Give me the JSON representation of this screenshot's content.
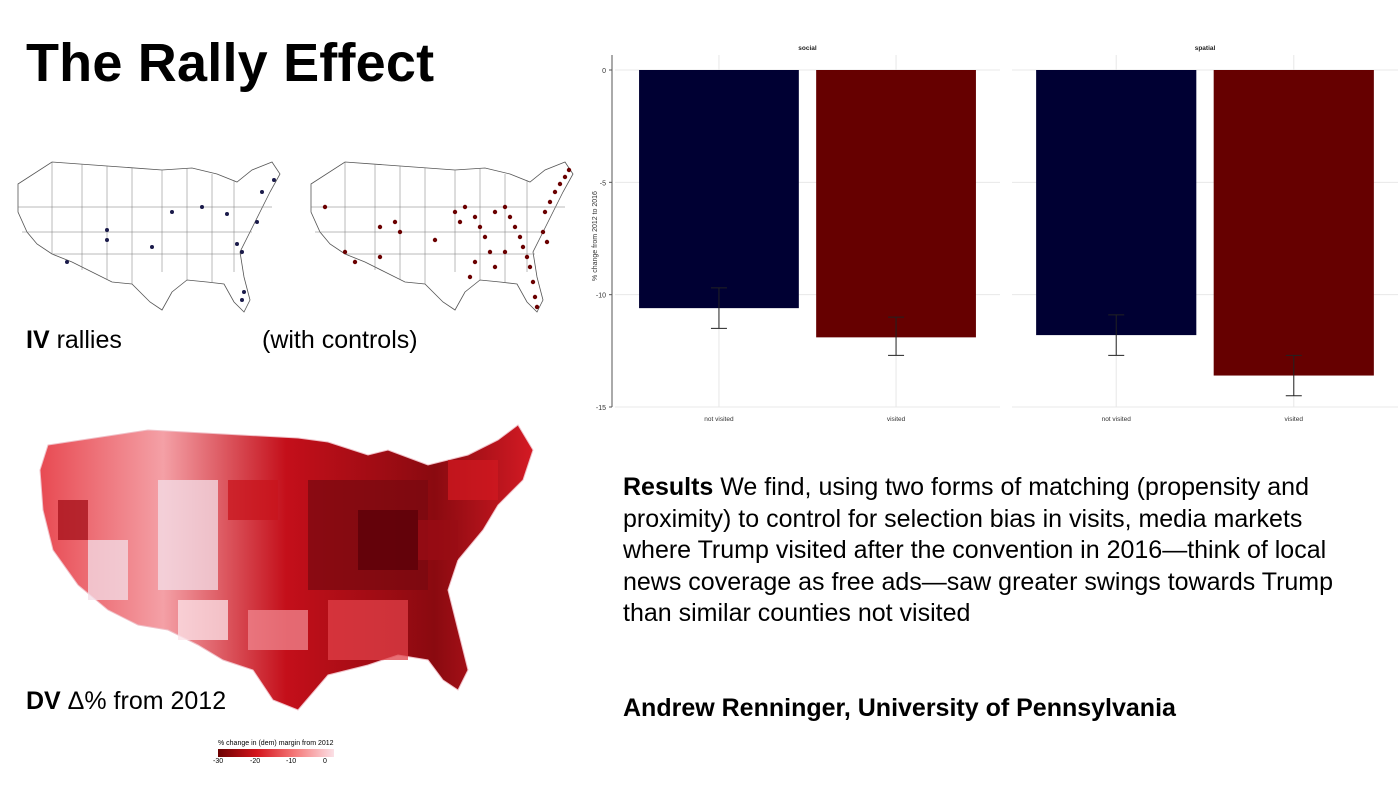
{
  "slide": {
    "title": "The Rally Effect"
  },
  "captions": {
    "iv_bold": "IV",
    "iv_rest": " rallies",
    "controls": "(with controls)",
    "dv_bold": "DV",
    "dv_rest": " Δ% from 2012"
  },
  "legend": {
    "title": "% change in (dem) margin from 2012",
    "ticks": [
      "-30",
      "-20",
      "-10",
      "0"
    ]
  },
  "results": {
    "label": "Results",
    "text": " We find, using two forms of matching (propensity and proximity) to control for selection bias in visits, media markets where Trump visited after the convention in 2016—think of local news coverage as free ads—saw greater swings towards Trump than similar counties not visited"
  },
  "author": "Andrew Renninger, University of Pennsylvania",
  "colors": {
    "not_visited": "#000033",
    "visited": "#660000",
    "map_line": "#555555",
    "rally_dot_iv": "#1a1a4a",
    "rally_dot_controls": "#6b0000"
  },
  "chart_data": {
    "type": "bar",
    "ylabel": "% change from 2012 to 2016",
    "ylim": [
      -15,
      0
    ],
    "yticks": [
      "0",
      "-5",
      "-10",
      "-15"
    ],
    "panels": [
      {
        "name": "social",
        "categories": [
          "not visited",
          "visited"
        ],
        "values": [
          -10.6,
          -11.9
        ],
        "error_low": [
          -11.5,
          -12.7
        ],
        "error_high": [
          -9.7,
          -11.0
        ]
      },
      {
        "name": "spatial",
        "categories": [
          "not visited",
          "visited"
        ],
        "values": [
          -11.8,
          -13.6
        ],
        "error_low": [
          -12.7,
          -14.5
        ],
        "error_high": [
          -10.9,
          -12.7
        ]
      }
    ],
    "bar_colors": [
      "#000033",
      "#660000"
    ]
  }
}
